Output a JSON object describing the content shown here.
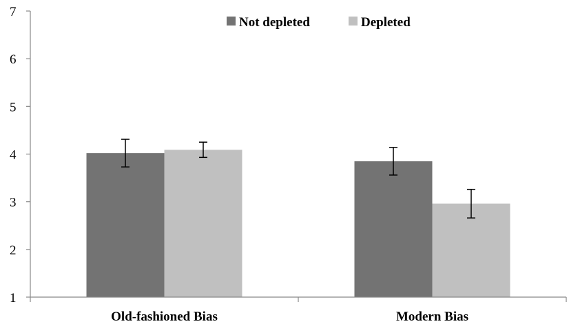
{
  "chart_data": {
    "type": "bar",
    "categories": [
      "Old-fashioned Bias",
      "Modern Bias"
    ],
    "series": [
      {
        "name": "Not depleted",
        "color": "#737373",
        "values": [
          4.02,
          3.85
        ],
        "error": [
          0.29,
          0.29
        ]
      },
      {
        "name": "Depleted",
        "color": "#c0c0c0",
        "values": [
          4.09,
          2.96
        ],
        "error": [
          0.16,
          0.3
        ]
      }
    ],
    "ylim": [
      1,
      7
    ],
    "yticks": [
      "1",
      "2",
      "3",
      "4",
      "5",
      "6",
      "7"
    ],
    "grid": false,
    "legend_position": "top-center"
  }
}
